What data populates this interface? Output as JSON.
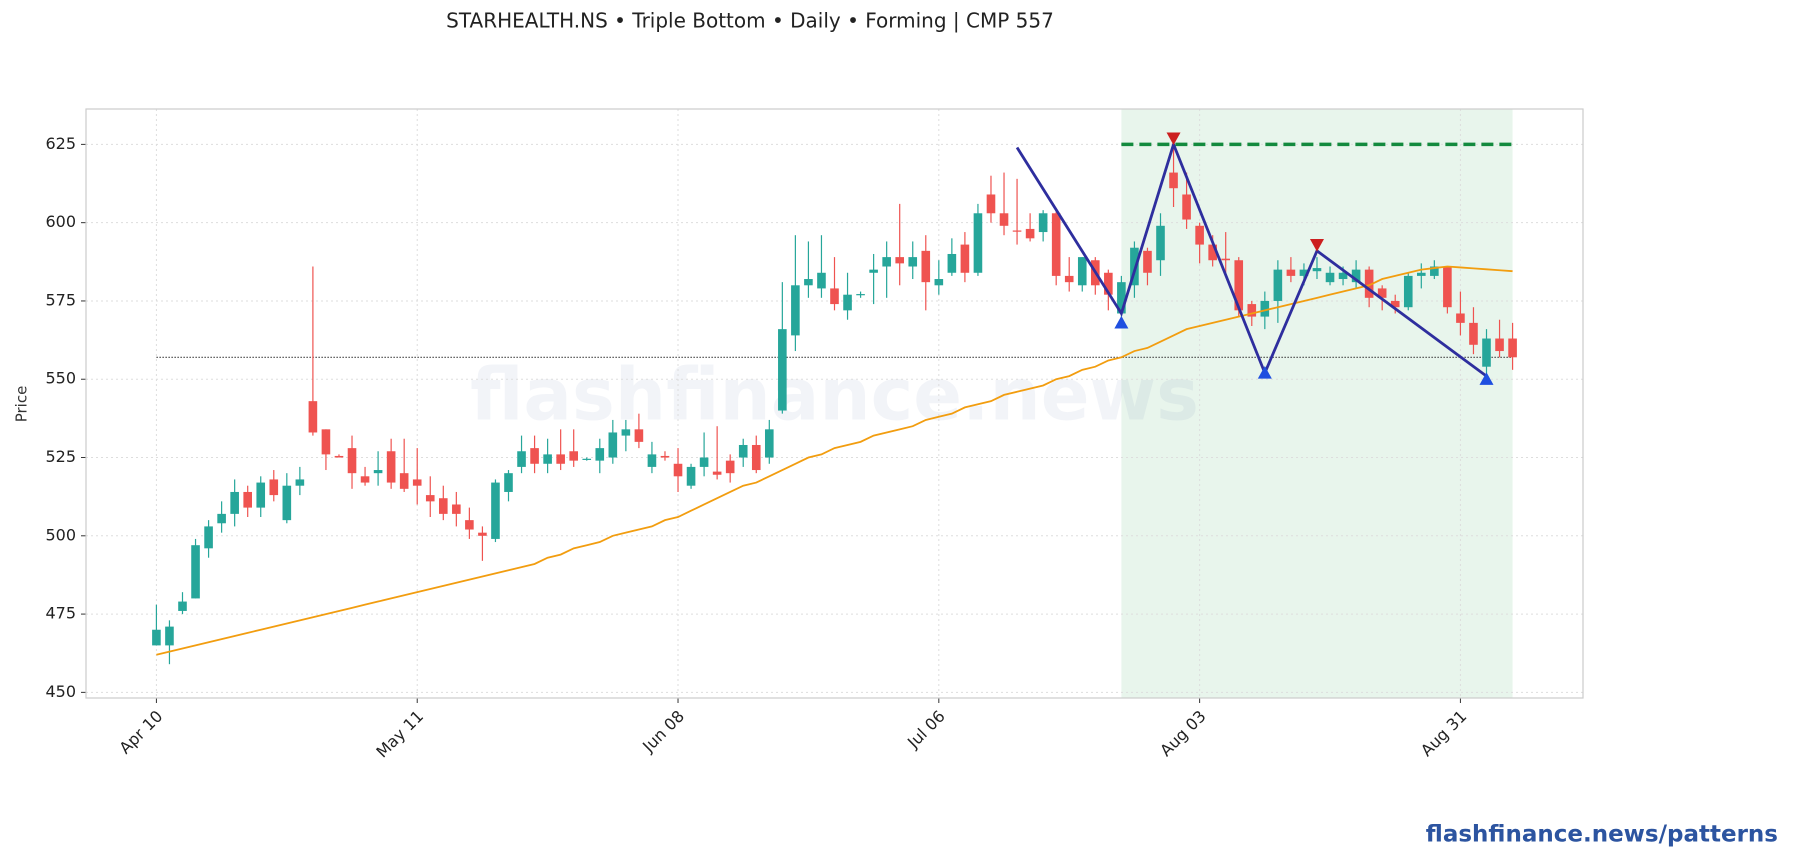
{
  "chart_data": {
    "type": "candlestick",
    "title": "STARHEALTH.NS  •  Triple Bottom  •  Daily  •  Forming  |  CMP 557",
    "y_label": "Price",
    "watermark": "flashfinance.news",
    "footer": "flashfinance.news/patterns",
    "categories": [
      "Apr 10",
      null,
      null,
      null,
      null,
      null,
      null,
      null,
      null,
      null,
      null,
      null,
      null,
      null,
      null,
      null,
      null,
      null,
      null,
      null,
      "May 11",
      null,
      null,
      null,
      null,
      null,
      null,
      null,
      null,
      null,
      null,
      null,
      null,
      null,
      null,
      null,
      null,
      null,
      null,
      null,
      "Jun 08",
      null,
      null,
      null,
      null,
      null,
      null,
      null,
      null,
      null,
      null,
      null,
      null,
      null,
      null,
      null,
      null,
      null,
      null,
      null,
      "Jul 06",
      null,
      null,
      null,
      null,
      null,
      null,
      null,
      null,
      null,
      null,
      null,
      null,
      null,
      null,
      null,
      null,
      null,
      null,
      null,
      "Aug 03",
      null,
      null,
      null,
      null,
      null,
      null,
      null,
      null,
      null,
      null,
      null,
      null,
      null,
      null,
      null,
      null,
      null,
      null,
      null,
      "Aug 31",
      null,
      null,
      null,
      null
    ],
    "open": [
      465,
      465,
      476,
      480,
      496,
      504,
      507,
      514,
      509,
      518,
      505,
      516,
      543,
      534,
      525.5,
      528,
      519,
      520,
      527,
      520,
      518,
      513,
      512,
      510,
      505,
      501,
      499,
      514,
      522,
      528,
      523,
      526,
      527,
      524.5,
      524,
      525,
      532,
      534,
      522,
      525.5,
      523,
      516,
      522,
      520.5,
      524,
      525,
      529,
      525,
      540,
      564,
      580,
      579,
      579,
      572,
      577,
      584,
      586,
      589,
      586,
      591,
      580,
      584,
      593,
      584,
      609,
      603,
      597.5,
      598,
      597,
      603,
      583,
      580,
      588,
      584,
      571,
      580,
      591,
      588,
      616,
      609,
      599,
      593,
      588.5,
      588,
      574,
      570,
      575,
      585,
      583,
      584.5,
      581,
      582,
      581,
      585,
      579,
      575,
      573,
      583,
      583,
      586,
      571,
      568,
      554,
      563,
      563
    ],
    "high": [
      478,
      473,
      482,
      499,
      505,
      511,
      518,
      516,
      519,
      521,
      520,
      522,
      586,
      534,
      526,
      532,
      522,
      527,
      531,
      531,
      528,
      519,
      516,
      514,
      509,
      503,
      518,
      521,
      532,
      532,
      531,
      534,
      534,
      525,
      531,
      537,
      537,
      539,
      530,
      527,
      528,
      523,
      533,
      535,
      526,
      531,
      532,
      537,
      581,
      596,
      594,
      596,
      589,
      584,
      578,
      590,
      594,
      606,
      594,
      596,
      588,
      595,
      597,
      606,
      615,
      616,
      614,
      603,
      604,
      604,
      589,
      589,
      589,
      585,
      583,
      594,
      592,
      603,
      626,
      616,
      600,
      596,
      597,
      589,
      575,
      578,
      588,
      589,
      587,
      589,
      586,
      586,
      588,
      586,
      580,
      577,
      584,
      587,
      588,
      586,
      578,
      573,
      566,
      569,
      568
    ],
    "low": [
      465,
      459,
      475,
      480,
      493,
      501,
      503,
      506,
      506,
      511,
      504,
      513,
      532,
      521,
      525,
      515,
      516,
      516,
      515,
      514,
      510,
      506,
      505,
      503,
      499,
      492,
      498,
      511,
      520,
      520,
      520,
      521,
      522,
      524,
      520,
      523,
      527,
      528,
      520,
      524,
      514,
      515,
      519,
      518,
      517,
      522,
      520,
      523,
      539,
      559,
      576,
      576,
      572,
      569,
      576,
      574,
      576,
      580,
      582,
      572,
      577,
      583,
      581,
      583,
      600,
      596,
      593,
      594,
      594,
      580,
      578,
      578,
      577,
      572,
      570,
      576,
      580,
      583,
      605,
      598,
      587,
      586,
      584,
      570,
      567,
      566,
      568,
      581,
      580,
      582,
      580,
      580,
      579,
      573,
      572,
      571,
      572,
      579,
      582,
      571,
      564,
      558,
      552,
      557,
      553
    ],
    "close": [
      470,
      471,
      479,
      497,
      503,
      507,
      514,
      509,
      517,
      513,
      516,
      518,
      533,
      526,
      525,
      520,
      517,
      521,
      517,
      515,
      516,
      511,
      507,
      507,
      502,
      500,
      517,
      520,
      527,
      523,
      526,
      523,
      524,
      524.6,
      528,
      533,
      534,
      530,
      526,
      525,
      519,
      522,
      525,
      519.5,
      520,
      529,
      521,
      534,
      566,
      580,
      582,
      584,
      574,
      577,
      577.2,
      585,
      589,
      587,
      589,
      581,
      582,
      590,
      584,
      603,
      603,
      599,
      597.3,
      595,
      603,
      583,
      581,
      589,
      580,
      577,
      581,
      592,
      584,
      599,
      611,
      601,
      593,
      588,
      588,
      572,
      570,
      575,
      585,
      583,
      585,
      585.5,
      584,
      584,
      585,
      576,
      576,
      573,
      583,
      584,
      586,
      573,
      568,
      561,
      563,
      559,
      557
    ],
    "up_color": "#26a69a",
    "down_color": "#ef5350",
    "moving_average": {
      "color": "#f29d0f",
      "values": [
        462,
        463,
        464,
        465,
        466,
        467,
        468,
        469,
        470,
        471,
        472,
        473,
        474,
        475,
        476,
        477,
        478,
        479,
        480,
        481,
        482,
        483,
        484,
        485,
        486,
        487,
        488,
        489,
        490,
        491,
        493,
        494,
        496,
        497,
        498,
        500,
        501,
        502,
        503,
        505,
        506,
        508,
        510,
        512,
        514,
        516,
        517,
        519,
        521,
        523,
        525,
        526,
        528,
        529,
        530,
        532,
        533,
        534,
        535,
        537,
        538,
        539,
        541,
        542,
        543,
        545,
        546,
        547,
        548,
        550,
        551,
        553,
        554,
        556,
        557,
        559,
        560,
        562,
        564,
        566,
        567,
        568,
        569,
        570,
        571,
        572,
        573,
        574,
        575,
        576,
        577,
        578,
        579,
        580,
        582,
        583,
        584,
        585,
        585.5,
        586,
        585.7,
        585.4,
        585.1,
        584.8,
        584.5
      ]
    },
    "cmp_line": {
      "value": 557,
      "color": "#444444"
    },
    "pattern_zone": {
      "start": 74,
      "end": 104,
      "color": "#e8f5ec"
    },
    "resistance": {
      "value": 625,
      "start": 74,
      "end": 104,
      "color": "#138a3e"
    },
    "pattern_line": {
      "color": "#2e2e9e",
      "x": [
        66,
        74,
        78,
        85,
        89,
        102
      ],
      "values": [
        624,
        571,
        625,
        552,
        591,
        551
      ]
    },
    "markers": [
      {
        "x": 74,
        "value": 568,
        "direction": "up",
        "color": "#1f4fe0"
      },
      {
        "x": 78,
        "value": 627,
        "direction": "down",
        "color": "#cc1f1f"
      },
      {
        "x": 85,
        "value": 552,
        "direction": "up",
        "color": "#1f4fe0"
      },
      {
        "x": 89,
        "value": 593,
        "direction": "down",
        "color": "#cc1f1f"
      },
      {
        "x": 102,
        "value": 550,
        "direction": "up",
        "color": "#1f4fe0"
      }
    ],
    "xlim": [
      -5.4,
      109.4
    ],
    "ylim": [
      448.2,
      636.3
    ],
    "yticks": [
      450,
      475,
      500,
      525,
      550,
      575,
      600,
      625
    ],
    "grid": true
  }
}
